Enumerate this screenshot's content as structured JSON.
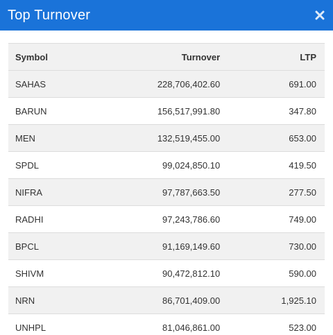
{
  "modal": {
    "title": "Top Turnover",
    "close_icon": "close-icon",
    "colors": {
      "header_bg": "#1a73d9",
      "row_alt_bg": "#f1f1f1"
    }
  },
  "table": {
    "headers": {
      "symbol": "Symbol",
      "turnover": "Turnover",
      "ltp": "LTP"
    },
    "rows": [
      {
        "symbol": "SAHAS",
        "turnover": "228,706,402.60",
        "ltp": "691.00"
      },
      {
        "symbol": "BARUN",
        "turnover": "156,517,991.80",
        "ltp": "347.80"
      },
      {
        "symbol": "MEN",
        "turnover": "132,519,455.00",
        "ltp": "653.00"
      },
      {
        "symbol": "SPDL",
        "turnover": "99,024,850.10",
        "ltp": "419.50"
      },
      {
        "symbol": "NIFRA",
        "turnover": "97,787,663.50",
        "ltp": "277.50"
      },
      {
        "symbol": "RADHI",
        "turnover": "97,243,786.60",
        "ltp": "749.00"
      },
      {
        "symbol": "BPCL",
        "turnover": "91,169,149.60",
        "ltp": "730.00"
      },
      {
        "symbol": "SHIVM",
        "turnover": "90,472,812.10",
        "ltp": "590.00"
      },
      {
        "symbol": "NRN",
        "turnover": "86,701,409.00",
        "ltp": "1,925.10"
      },
      {
        "symbol": "UNHPL",
        "turnover": "81,046,861.00",
        "ltp": "523.00"
      }
    ]
  }
}
